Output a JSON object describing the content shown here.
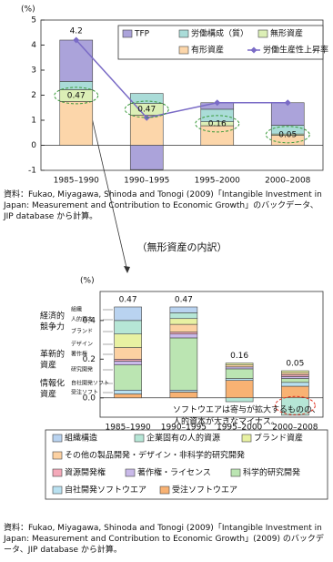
{
  "chart_data": [
    {
      "type": "bar",
      "stacked": true,
      "ylabel": "(%)",
      "categories": [
        "1985–1990",
        "1990–1995",
        "1995–2000",
        "2000–2008"
      ],
      "series": [
        {
          "name": "TFP",
          "type": "bar",
          "color": "#aba3da",
          "values": [
            1.65,
            -0.97,
            0.26,
            0.9
          ]
        },
        {
          "name": "労働構成（質）",
          "type": "bar",
          "color": "#aadcd8",
          "values": [
            0.33,
            0.4,
            0.5,
            0.35
          ]
        },
        {
          "name": "無形資産",
          "type": "bar",
          "color": "#dcefb6",
          "values": [
            0.47,
            0.47,
            0.16,
            0.05
          ]
        },
        {
          "name": "有形資産",
          "type": "bar",
          "color": "#fcd6aa",
          "values": [
            1.75,
            1.2,
            0.78,
            0.4
          ]
        },
        {
          "name": "労働生産性上昇率",
          "type": "line",
          "color": "#7a6bc6",
          "values": [
            4.2,
            1.1,
            1.7,
            1.7
          ],
          "value_labels": [
            "4.2",
            null,
            null,
            null
          ]
        }
      ],
      "ylim": [
        -1,
        5
      ],
      "yticks": [
        -1,
        0,
        1,
        2,
        3,
        4,
        5
      ],
      "source": "資料：Fukao, Miyagawa, Shinoda and Tonogi (2009)「Intangible Investment in Japan: Measurement and Contribution to Economic Growth」のバックデータ、JIP database から計算。"
    },
    {
      "type": "bar",
      "stacked": true,
      "title": "（無形資産の内訳）",
      "ylabel": "(%)",
      "categories": [
        "1985–1990",
        "1990–1995",
        "1995–2000",
        "2000–2008"
      ],
      "totals": [
        0.47,
        0.47,
        0.16,
        0.05
      ],
      "series": [
        {
          "name": "組織構造",
          "color": "#b9d3f0",
          "values": [
            0.07,
            0.03,
            0,
            0
          ]
        },
        {
          "name": "企業固有の人的資源",
          "color": "#b6e6d6",
          "values": [
            0.07,
            0.03,
            -0.02,
            -0.09
          ]
        },
        {
          "name": "ブランド資産",
          "color": "#e8f1a2",
          "values": [
            0.07,
            0.03,
            0.01,
            0.01
          ]
        },
        {
          "name": "その他の製品開発・デザイン・非科学的研究開発",
          "color": "#fcd1a2",
          "values": [
            0.06,
            0.04,
            0.01,
            0.01
          ]
        },
        {
          "name": "資源開発権",
          "color": "#f4a9b9",
          "values": [
            0.01,
            0.01,
            0,
            0.01
          ]
        },
        {
          "name": "著作権・ライセンス",
          "color": "#c9b9e9",
          "values": [
            0.02,
            0.02,
            0.01,
            0.01
          ]
        },
        {
          "name": "科学的研究開発",
          "color": "#bbe5b2",
          "values": [
            0.13,
            0.27,
            0.05,
            0.02
          ]
        },
        {
          "name": "自社開発ソフトウエア",
          "color": "#b9e1f1",
          "values": [
            0.02,
            0.01,
            0.01,
            0.02
          ]
        },
        {
          "name": "受注ソフトウエア",
          "color": "#f8b273",
          "values": [
            0.02,
            0.03,
            0.09,
            0.06
          ]
        }
      ],
      "ylim": [
        -0.1,
        0.55
      ],
      "yticks": [
        {
          "value": 0,
          "label": "0.0"
        },
        0.2,
        0.4
      ],
      "group_labels": [
        [
          "経済的",
          "競争力"
        ],
        [
          "革新的",
          "資産"
        ],
        [
          "情報化",
          "資産"
        ]
      ],
      "item_labels": [
        "組織",
        "人的資本",
        "ブランド",
        "デザイン",
        "著作権",
        "研究開発",
        "自社開発ソフト",
        "受注ソフト"
      ],
      "annotation": [
        "ソフトウエアは寄与が拡大するものの、",
        "人的資本が大きなマイナス。"
      ],
      "source": "資料：Fukao, Miyagawa, Shinoda and Tonogi (2009)「Intangible Investment in Japan: Measurement and Contribution to Economic Growth」(2009) のバックデータ、JIP database から計算。"
    }
  ]
}
